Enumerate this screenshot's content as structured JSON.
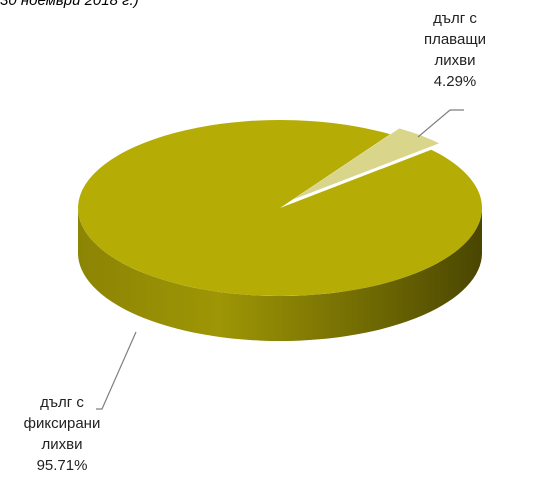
{
  "title_fragment": "30 ноември 2018 г.)",
  "chart_data": {
    "type": "pie",
    "slices": [
      {
        "label_lines": [
          "дълг с",
          "плаващи",
          "лихви"
        ],
        "value_label": "4.29%",
        "value": 4.29,
        "color": "#d9d58a",
        "exploded": true
      },
      {
        "label_lines": [
          "дълг с",
          "фиксирани",
          "лихви"
        ],
        "value_label": "95.71%",
        "value": 95.71,
        "color": "#b5ad05",
        "exploded": false
      }
    ],
    "legend": "none"
  }
}
